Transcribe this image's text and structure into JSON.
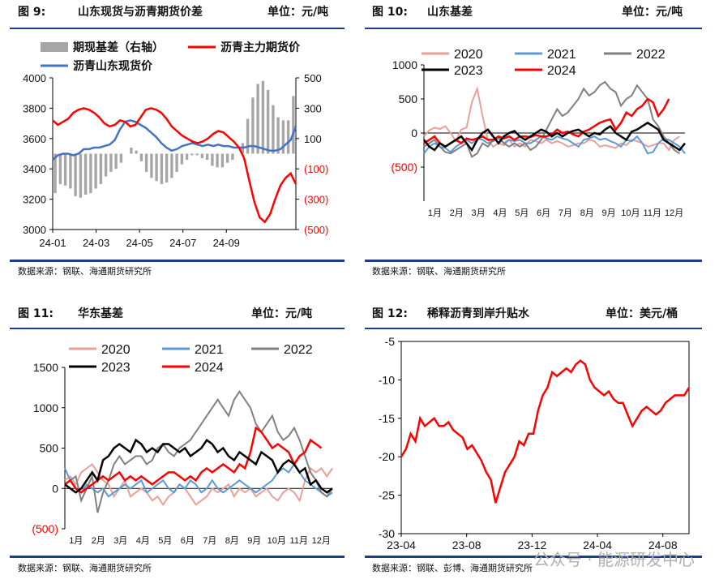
{
  "watermark": "公众号 · 能源研发中心",
  "chart_data": [
    {
      "type": "line",
      "fig_label": "图 9:",
      "title": "山东现货与沥青期货价差",
      "unit": "单位：元/吨",
      "source": "数据来源：钢联、海通期货研究所",
      "x_ticks": [
        "24-01",
        "24-03",
        "24-05",
        "24-07",
        "24-09"
      ],
      "ylim_left": [
        3000,
        4000
      ],
      "yticks_left": [
        "3000",
        "3200",
        "3400",
        "3600",
        "3800",
        "4000"
      ],
      "ylim_right": [
        -500,
        500
      ],
      "yticks_right": [
        "(500)",
        "(300)",
        "(100)",
        "100",
        "300",
        "500"
      ],
      "legend": [
        "期现基差（右轴）",
        "沥青主力期货价",
        "沥青山东现货价"
      ],
      "colors": {
        "basis": "#a6a6a6",
        "futures": "#ff0000",
        "spot": "#4472c4"
      },
      "series": [
        {
          "name": "沥青主力期货价",
          "axis": "left",
          "values": [
            3720,
            3690,
            3710,
            3730,
            3770,
            3790,
            3800,
            3790,
            3770,
            3740,
            3700,
            3680,
            3690,
            3720,
            3710,
            3680,
            3690,
            3740,
            3790,
            3800,
            3790,
            3770,
            3730,
            3680,
            3650,
            3620,
            3600,
            3580,
            3570,
            3580,
            3600,
            3630,
            3650,
            3640,
            3610,
            3580,
            3540,
            3470,
            3320,
            3180,
            3080,
            3050,
            3100,
            3200,
            3290,
            3340,
            3370,
            3300
          ]
        },
        {
          "name": "沥青山东现货价",
          "axis": "left",
          "values": [
            3460,
            3490,
            3500,
            3500,
            3490,
            3500,
            3530,
            3530,
            3540,
            3540,
            3550,
            3560,
            3590,
            3660,
            3710,
            3720,
            3710,
            3690,
            3670,
            3640,
            3610,
            3570,
            3540,
            3520,
            3530,
            3550,
            3560,
            3570,
            3560,
            3550,
            3560,
            3550,
            3560,
            3550,
            3550,
            3540,
            3540,
            3540,
            3550,
            3550,
            3540,
            3530,
            3520,
            3520,
            3530,
            3560,
            3590,
            3680
          ]
        },
        {
          "name": "期现基差（右轴）",
          "axis": "right",
          "type": "bar",
          "values": [
            -260,
            -200,
            -210,
            -230,
            -280,
            -290,
            -270,
            -260,
            -230,
            -200,
            -150,
            -120,
            -100,
            -60,
            0,
            40,
            20,
            -50,
            -120,
            -160,
            -180,
            -200,
            -190,
            -160,
            -120,
            -70,
            -40,
            -10,
            -10,
            -30,
            -40,
            -80,
            -90,
            -90,
            -60,
            -40,
            0,
            70,
            230,
            370,
            460,
            480,
            420,
            320,
            240,
            220,
            220,
            380
          ]
        }
      ]
    },
    {
      "type": "line",
      "fig_label": "图 10:",
      "title": "山东基差",
      "unit": "单位：元/吨",
      "source": "数据来源：钢联、海通期货研究所",
      "x_ticks": [
        "1月",
        "2月",
        "3月",
        "4月",
        "5月",
        "6月",
        "7月",
        "8月",
        "9月",
        "10月",
        "11月",
        "12月"
      ],
      "ylim": [
        -1000,
        1000
      ],
      "yticks": [
        "1000",
        "500",
        "0",
        "(500)"
      ],
      "legend": [
        "2020",
        "2021",
        "2022",
        "2023",
        "2024"
      ],
      "series": [
        {
          "name": "2020",
          "color": "#e8a09a",
          "values": [
            -50,
            40,
            80,
            60,
            100,
            0,
            -120,
            50,
            80,
            450,
            650,
            250,
            -100,
            -200,
            -150,
            -180,
            -100,
            -200,
            -150,
            -200,
            -100,
            -120,
            -150,
            -100,
            -150,
            -120,
            -150,
            -200,
            -180,
            -150,
            -150,
            -100,
            -120,
            -200,
            -180,
            -200,
            -220,
            -150,
            -180,
            -100,
            -120,
            -150,
            -200,
            -180,
            -150,
            -150,
            -250,
            -100,
            -50
          ]
        },
        {
          "name": "2021",
          "color": "#5b9bd5",
          "values": [
            -300,
            -200,
            -150,
            -200,
            -220,
            -280,
            -200,
            -150,
            -100,
            -150,
            -80,
            -100,
            -150,
            -120,
            -80,
            -150,
            -100,
            -120,
            -100,
            -150,
            -150,
            -100,
            -50,
            -80,
            -100,
            -50,
            -80,
            -100,
            -150,
            -200,
            -100,
            -80,
            -50,
            -100,
            -80,
            -120,
            -150,
            -200,
            -100,
            -120,
            -50,
            -150,
            -300,
            -280,
            -150,
            -80,
            -100,
            -150,
            -200,
            -300
          ]
        },
        {
          "name": "2022",
          "color": "#808080",
          "values": [
            -200,
            -150,
            -100,
            -200,
            -280,
            -300,
            -250,
            -200,
            -150,
            -350,
            -300,
            -150,
            -200,
            -100,
            -50,
            -150,
            -200,
            -150,
            -200,
            -150,
            -250,
            -200,
            -100,
            50,
            200,
            350,
            250,
            300,
            400,
            500,
            650,
            550,
            600,
            700,
            750,
            650,
            600,
            400,
            500,
            550,
            700,
            600,
            500,
            200,
            100,
            -50,
            -150,
            -250,
            -300
          ]
        },
        {
          "name": "2023",
          "color": "#000000",
          "values": [
            -100,
            -200,
            -250,
            -150,
            -200,
            -150,
            -100,
            -50,
            -150,
            -250,
            -100,
            0,
            50,
            -50,
            -150,
            -50,
            0,
            30,
            -50,
            -100,
            -50,
            0,
            50,
            20,
            -50,
            0,
            -50,
            0,
            30,
            50,
            0,
            -50,
            0,
            -20,
            50,
            100,
            0,
            -50,
            -100,
            20,
            50,
            100,
            150,
            100,
            50,
            -100,
            -150,
            -200,
            -250,
            -150
          ]
        },
        {
          "name": "2024",
          "color": "#ff0000",
          "values": [
            -150,
            -100,
            -50,
            -150,
            -200,
            -150,
            -100,
            -150,
            -80,
            -100,
            -80,
            -50,
            -100,
            -100,
            -50,
            -80,
            -50,
            -100,
            -50,
            -50,
            -60,
            -30,
            -50,
            -50,
            -20,
            50,
            0,
            20,
            -20,
            -50,
            20,
            50,
            100,
            150,
            180,
            200,
            50,
            150,
            300,
            250,
            350,
            400,
            500,
            450,
            250,
            350,
            500
          ]
        }
      ]
    },
    {
      "type": "line",
      "fig_label": "图 11:",
      "title": "华东基差",
      "unit": "单位：元/吨",
      "source": "数据来源：钢联、海通期货研究所",
      "x_ticks": [
        "1月",
        "2月",
        "3月",
        "4月",
        "5月",
        "6月",
        "7月",
        "8月",
        "9月",
        "10月",
        "11月",
        "12月"
      ],
      "ylim": [
        -500,
        1500
      ],
      "yticks": [
        "1500",
        "1000",
        "500",
        "0",
        "(500)"
      ],
      "legend": [
        "2020",
        "2021",
        "2022",
        "2023",
        "2024"
      ],
      "series": [
        {
          "name": "2020",
          "color": "#e8a09a",
          "values": [
            100,
            150,
            50,
            200,
            250,
            300,
            200,
            100,
            50,
            -100,
            0,
            100,
            -100,
            -50,
            0,
            -50,
            -150,
            -100,
            -200,
            -100,
            -50,
            50,
            0,
            -100,
            -200,
            -150,
            -100,
            0,
            -50,
            0,
            50,
            -100,
            0,
            -50,
            0,
            -100,
            -50,
            0,
            -100,
            -150,
            -50,
            0,
            -50,
            -150,
            100,
            250,
            200,
            250,
            150,
            250
          ]
        },
        {
          "name": "2021",
          "color": "#5b9bd5",
          "values": [
            250,
            100,
            0,
            -50,
            50,
            0,
            -50,
            0,
            -100,
            -50,
            0,
            50,
            0,
            50,
            100,
            -50,
            0,
            50,
            100,
            0,
            -50,
            50,
            0,
            100,
            50,
            -50,
            0,
            100,
            0,
            -50,
            0,
            50,
            100,
            50,
            0,
            -50,
            0,
            50,
            100,
            200,
            250,
            200,
            300,
            200,
            100,
            50,
            0,
            -50,
            -100,
            -50
          ]
        },
        {
          "name": "2022",
          "color": "#808080",
          "values": [
            50,
            100,
            150,
            -150,
            0,
            150,
            -300,
            -50,
            100,
            300,
            400,
            300,
            350,
            400,
            400,
            300,
            350,
            500,
            550,
            450,
            400,
            500,
            550,
            600,
            700,
            800,
            900,
            1000,
            1100,
            1000,
            900,
            1100,
            1200,
            1100,
            1000,
            800,
            700,
            800,
            900,
            700,
            600,
            650,
            750,
            600,
            400,
            200,
            100,
            -50,
            -100,
            0
          ]
        },
        {
          "name": "2023",
          "color": "#000000",
          "values": [
            50,
            0,
            -50,
            0,
            100,
            200,
            100,
            350,
            400,
            500,
            550,
            500,
            450,
            600,
            550,
            450,
            500,
            450,
            550,
            550,
            500,
            450,
            500,
            400,
            450,
            500,
            600,
            550,
            450,
            500,
            400,
            350,
            450,
            400,
            350,
            300,
            450,
            400,
            350,
            200,
            300,
            350,
            300,
            200,
            250,
            50,
            100,
            0,
            -50,
            0
          ]
        },
        {
          "name": "2024",
          "color": "#ff0000",
          "values": [
            50,
            100,
            0,
            -50,
            0,
            50,
            100,
            150,
            100,
            150,
            200,
            100,
            150,
            100,
            150,
            100,
            50,
            100,
            150,
            200,
            200,
            150,
            100,
            150,
            100,
            200,
            250,
            200,
            250,
            300,
            250,
            200,
            300,
            250,
            450,
            750,
            700,
            600,
            500,
            550,
            500,
            450,
            300,
            400,
            450,
            600,
            550,
            500
          ]
        }
      ]
    },
    {
      "type": "line",
      "fig_label": "图 12:",
      "title": "稀释沥青到岸升贴水",
      "unit": "单位：美元/桶",
      "source": "数据来源：钢联、彭博、海通期货研究所",
      "x_ticks": [
        "23-04",
        "23-08",
        "23-12",
        "24-04",
        "24-08"
      ],
      "ylim": [
        -30,
        -5
      ],
      "yticks": [
        "-5",
        "-10",
        "-15",
        "-20",
        "-25",
        "-30"
      ],
      "series": [
        {
          "name": "稀释沥青到岸升贴水",
          "color": "#ff0000",
          "values": [
            -20,
            -19,
            -17,
            -18,
            -15,
            -16,
            -15.5,
            -15,
            -16,
            -16,
            -15.5,
            -16.5,
            -17,
            -17.5,
            -19,
            -18.5,
            -19.5,
            -20.5,
            -22,
            -23,
            -26,
            -24,
            -22,
            -21,
            -20,
            -18,
            -18.5,
            -17,
            -17,
            -14,
            -12,
            -11,
            -9,
            -9.5,
            -9,
            -8.5,
            -9,
            -8,
            -7.5,
            -8,
            -10,
            -11,
            -11.5,
            -12,
            -11.5,
            -12.5,
            -13,
            -13,
            -14.5,
            -16,
            -15,
            -14,
            -13.5,
            -14,
            -14.5,
            -14,
            -13,
            -12.5,
            -12,
            -12,
            -12,
            -11
          ]
        }
      ]
    }
  ]
}
